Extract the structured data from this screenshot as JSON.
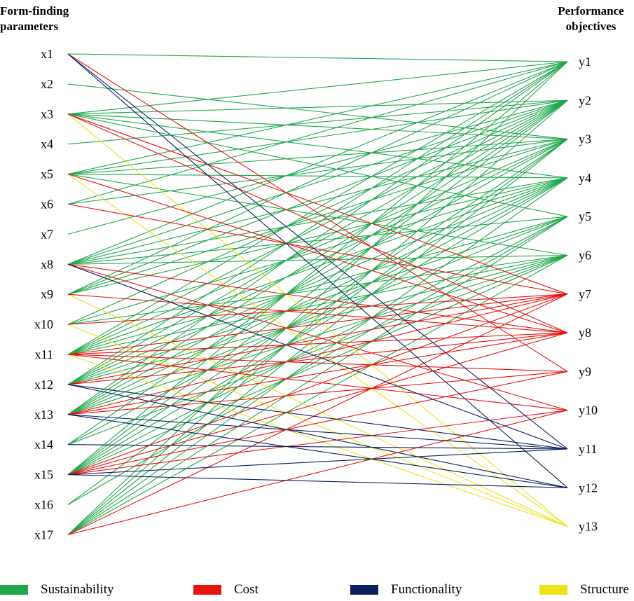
{
  "header": {
    "left_title": "Form-finding\nparameters",
    "right_title": "Performance\nobjectives"
  },
  "categories": {
    "sustainability": {
      "label": "Sustainability",
      "color": "#1fa84a"
    },
    "cost": {
      "label": "Cost",
      "color": "#e8120f"
    },
    "functionality": {
      "label": "Functionality",
      "color": "#0b1f5e"
    },
    "structure": {
      "label": "Structure",
      "color": "#ede31a"
    }
  },
  "inputs": [
    "x1",
    "x2",
    "x3",
    "x4",
    "x5",
    "x6",
    "x7",
    "x8",
    "x9",
    "x10",
    "x11",
    "x12",
    "x13",
    "x14",
    "x15",
    "x16",
    "x17"
  ],
  "outputs": [
    "y1",
    "y2",
    "y3",
    "y4",
    "y5",
    "y6",
    "y7",
    "y8",
    "y9",
    "y10",
    "y11",
    "y12",
    "y13"
  ],
  "edges": {
    "sustainability": [
      [
        "x1",
        "y1"
      ],
      [
        "x2",
        "y3"
      ],
      [
        "x3",
        "y1"
      ],
      [
        "x3",
        "y2"
      ],
      [
        "x3",
        "y3"
      ],
      [
        "x3",
        "y4"
      ],
      [
        "x3",
        "y5"
      ],
      [
        "x4",
        "y2"
      ],
      [
        "x5",
        "y1"
      ],
      [
        "x5",
        "y2"
      ],
      [
        "x5",
        "y3"
      ],
      [
        "x5",
        "y4"
      ],
      [
        "x5",
        "y6"
      ],
      [
        "x6",
        "y1"
      ],
      [
        "x6",
        "y3"
      ],
      [
        "x7",
        "y2"
      ],
      [
        "x8",
        "y1"
      ],
      [
        "x8",
        "y2"
      ],
      [
        "x8",
        "y3"
      ],
      [
        "x8",
        "y4"
      ],
      [
        "x8",
        "y5"
      ],
      [
        "x8",
        "y6"
      ],
      [
        "x9",
        "y1"
      ],
      [
        "x9",
        "y2"
      ],
      [
        "x9",
        "y3"
      ],
      [
        "x9",
        "y4"
      ],
      [
        "x10",
        "y2"
      ],
      [
        "x10",
        "y4"
      ],
      [
        "x10",
        "y6"
      ],
      [
        "x11",
        "y1"
      ],
      [
        "x11",
        "y2"
      ],
      [
        "x11",
        "y3"
      ],
      [
        "x11",
        "y4"
      ],
      [
        "x11",
        "y5"
      ],
      [
        "x11",
        "y6"
      ],
      [
        "x12",
        "y1"
      ],
      [
        "x12",
        "y2"
      ],
      [
        "x12",
        "y3"
      ],
      [
        "x12",
        "y4"
      ],
      [
        "x12",
        "y5"
      ],
      [
        "x12",
        "y6"
      ],
      [
        "x13",
        "y1"
      ],
      [
        "x13",
        "y2"
      ],
      [
        "x13",
        "y3"
      ],
      [
        "x13",
        "y4"
      ],
      [
        "x13",
        "y5"
      ],
      [
        "x13",
        "y6"
      ],
      [
        "x14",
        "y2"
      ],
      [
        "x14",
        "y4"
      ],
      [
        "x14",
        "y6"
      ],
      [
        "x15",
        "y1"
      ],
      [
        "x15",
        "y2"
      ],
      [
        "x15",
        "y3"
      ],
      [
        "x15",
        "y4"
      ],
      [
        "x15",
        "y5"
      ],
      [
        "x15",
        "y6"
      ],
      [
        "x16",
        "y3"
      ],
      [
        "x16",
        "y5"
      ],
      [
        "x17",
        "y1"
      ],
      [
        "x17",
        "y2"
      ],
      [
        "x17",
        "y3"
      ],
      [
        "x17",
        "y4"
      ],
      [
        "x17",
        "y5"
      ],
      [
        "x17",
        "y6"
      ]
    ],
    "cost": [
      [
        "x1",
        "y9"
      ],
      [
        "x3",
        "y7"
      ],
      [
        "x3",
        "y8"
      ],
      [
        "x5",
        "y8"
      ],
      [
        "x6",
        "y7"
      ],
      [
        "x8",
        "y8"
      ],
      [
        "x8",
        "y10"
      ],
      [
        "x9",
        "y8"
      ],
      [
        "x10",
        "y7"
      ],
      [
        "x11",
        "y7"
      ],
      [
        "x11",
        "y8"
      ],
      [
        "x11",
        "y9"
      ],
      [
        "x11",
        "y10"
      ],
      [
        "x12",
        "y7"
      ],
      [
        "x12",
        "y8"
      ],
      [
        "x13",
        "y7"
      ],
      [
        "x13",
        "y8"
      ],
      [
        "x13",
        "y9"
      ],
      [
        "x15",
        "y7"
      ],
      [
        "x15",
        "y8"
      ],
      [
        "x15",
        "y9"
      ],
      [
        "x15",
        "y10"
      ],
      [
        "x17",
        "y7"
      ],
      [
        "x17",
        "y10"
      ]
    ],
    "functionality": [
      [
        "x1",
        "y11"
      ],
      [
        "x1",
        "y12"
      ],
      [
        "x8",
        "y11"
      ],
      [
        "x12",
        "y11"
      ],
      [
        "x12",
        "y12"
      ],
      [
        "x13",
        "y11"
      ],
      [
        "x13",
        "y12"
      ],
      [
        "x14",
        "y11"
      ],
      [
        "x15",
        "y11"
      ],
      [
        "x15",
        "y12"
      ]
    ],
    "structure": [
      [
        "x3",
        "y13"
      ],
      [
        "x5",
        "y13"
      ],
      [
        "x9",
        "y13"
      ],
      [
        "x10",
        "y13"
      ],
      [
        "x11",
        "y13"
      ]
    ]
  }
}
